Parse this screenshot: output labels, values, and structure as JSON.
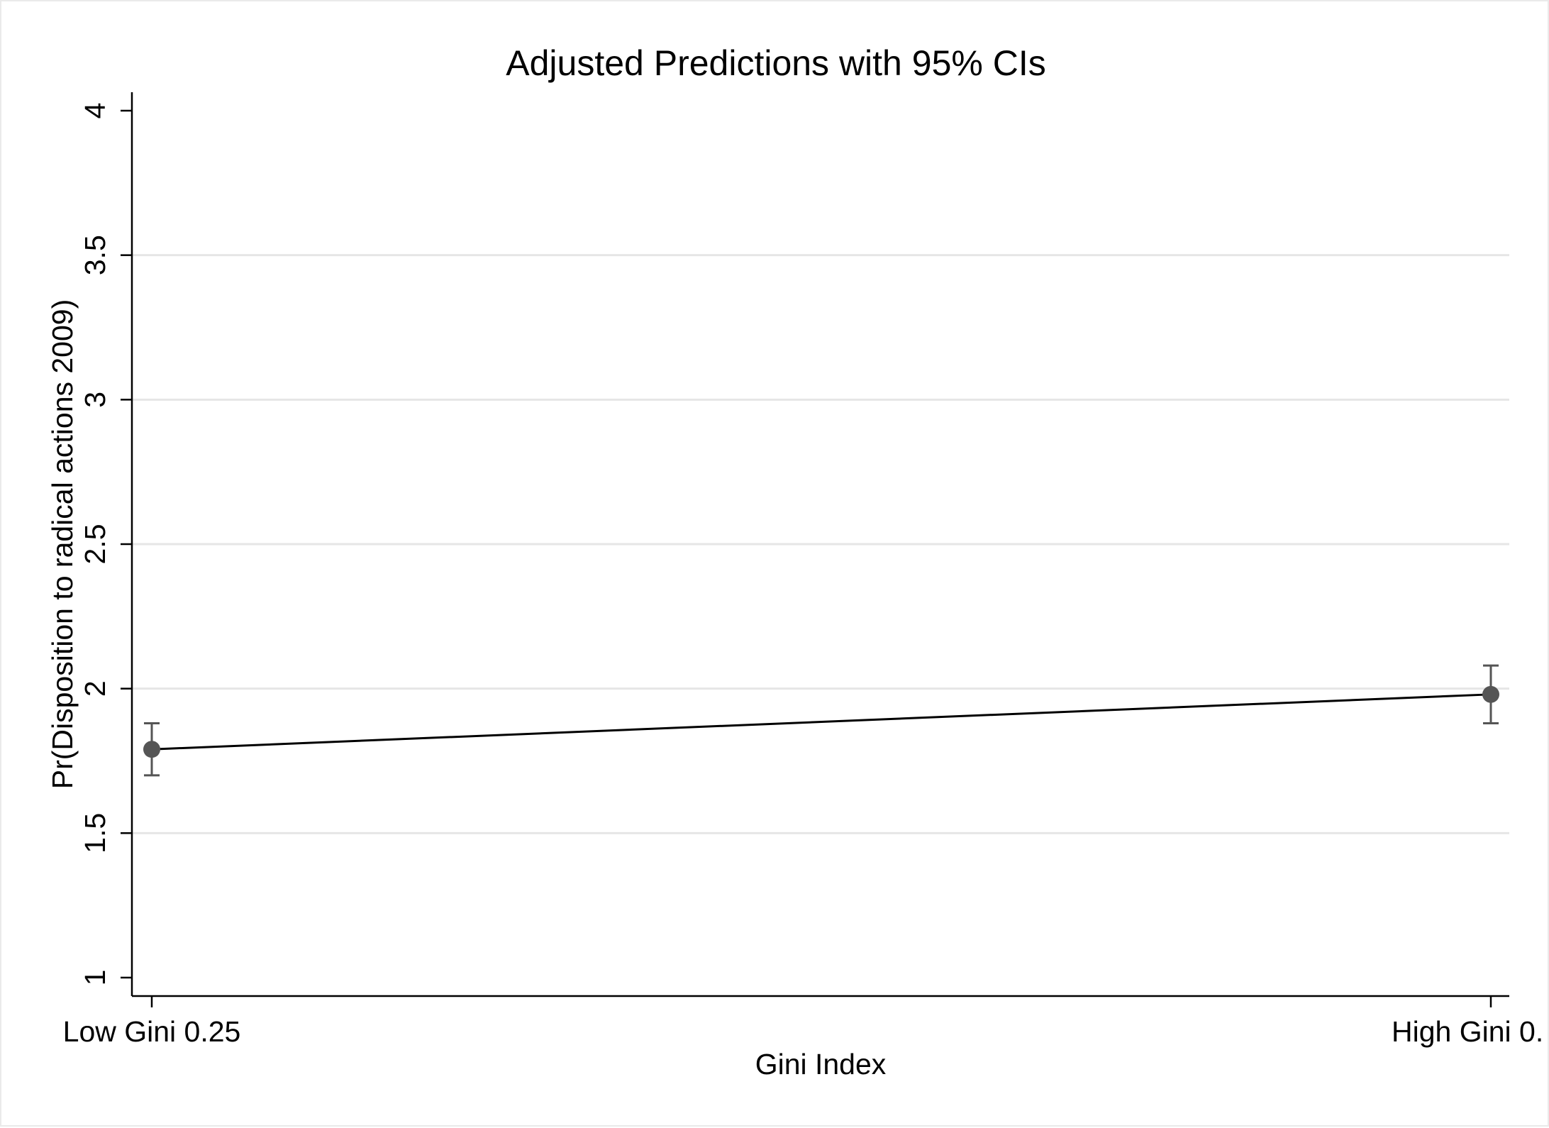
{
  "chart_data": {
    "type": "line",
    "title": "Adjusted Predictions with 95% CIs",
    "xlabel": "Gini Index",
    "ylabel": "Pr(Disposition to radical actions 2009)",
    "categories": [
      "Low Gini 0.25",
      "High Gini 0."
    ],
    "series": [
      {
        "values": [
          1.79,
          1.98
        ],
        "ci_lower": [
          1.7,
          1.88
        ],
        "ci_upper": [
          1.88,
          2.08
        ]
      }
    ],
    "ylim": [
      1,
      4
    ],
    "yticks": [
      1,
      1.5,
      2,
      2.5,
      3,
      3.5,
      4
    ],
    "ytick_labels": [
      "1",
      "1.5",
      "2",
      "2.5",
      "3",
      "3.5",
      "4"
    ],
    "grid": true,
    "legend": "none",
    "colors": {
      "line": "#000000",
      "marker": "#555555",
      "ci": "#555555",
      "grid": "#e6e6e6",
      "axis": "#000000"
    }
  }
}
